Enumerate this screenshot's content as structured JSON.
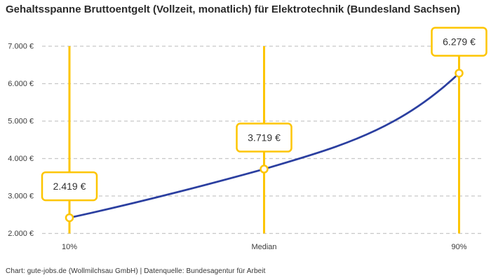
{
  "attribution": "Chart: gute-jobs.de (Wollmilchsau GmbH) | Datenquelle: Bundesagentur für Arbeit",
  "chart_data": {
    "type": "line",
    "title": "Gehaltsspanne Bruttoentgelt (Vollzeit, monatlich) für Elektrotechnik (Bundesland Sachsen)",
    "categories": [
      "10%",
      "Median",
      "90%"
    ],
    "values": [
      2419,
      3719,
      6279
    ],
    "value_labels": [
      "2.419 €",
      "3.719 €",
      "6.279 €"
    ],
    "xlabel": "",
    "ylabel": "",
    "ylim": [
      2000,
      7000
    ],
    "ytick_values": [
      2000,
      3000,
      4000,
      5000,
      6000,
      7000
    ],
    "ytick_labels": [
      "2.000 €",
      "3.000 €",
      "4.000 €",
      "5.000 €",
      "6.000 €",
      "7.000 €"
    ],
    "grid": "horizontal-dashed",
    "legend": "none",
    "colors": {
      "line": "#2b3fa0",
      "accent": "#fdc500",
      "grid": "#c7c7c7",
      "axis_text": "#3c3c3c",
      "label_text": "#333333",
      "background": "#ffffff"
    }
  }
}
